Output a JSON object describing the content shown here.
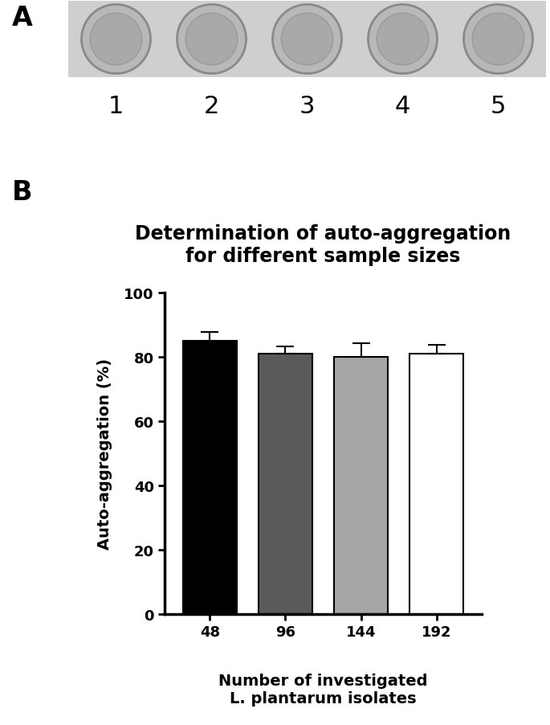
{
  "figure": {
    "panel_a": {
      "label": "A",
      "wells": [
        "1",
        "2",
        "3",
        "4",
        "5"
      ]
    },
    "panel_b": {
      "label": "B"
    }
  },
  "chart_data": {
    "type": "bar",
    "title": "Determination of auto-aggregation\nfor different sample sizes",
    "x_label": "Number of investigated\nL. plantarum isolates",
    "y_label": "Auto-aggregation (%)",
    "categories": [
      "48",
      "96",
      "144",
      "192"
    ],
    "values": [
      85,
      81,
      80,
      81
    ],
    "error": [
      2.7,
      2.2,
      4.3,
      2.8
    ],
    "colors": [
      "#000000",
      "#5a5a5a",
      "#a6a6a6",
      "#ffffff"
    ],
    "ylim": [
      0,
      100
    ],
    "yticks": [
      0,
      20,
      40,
      60,
      80,
      100
    ],
    "grid": false
  }
}
